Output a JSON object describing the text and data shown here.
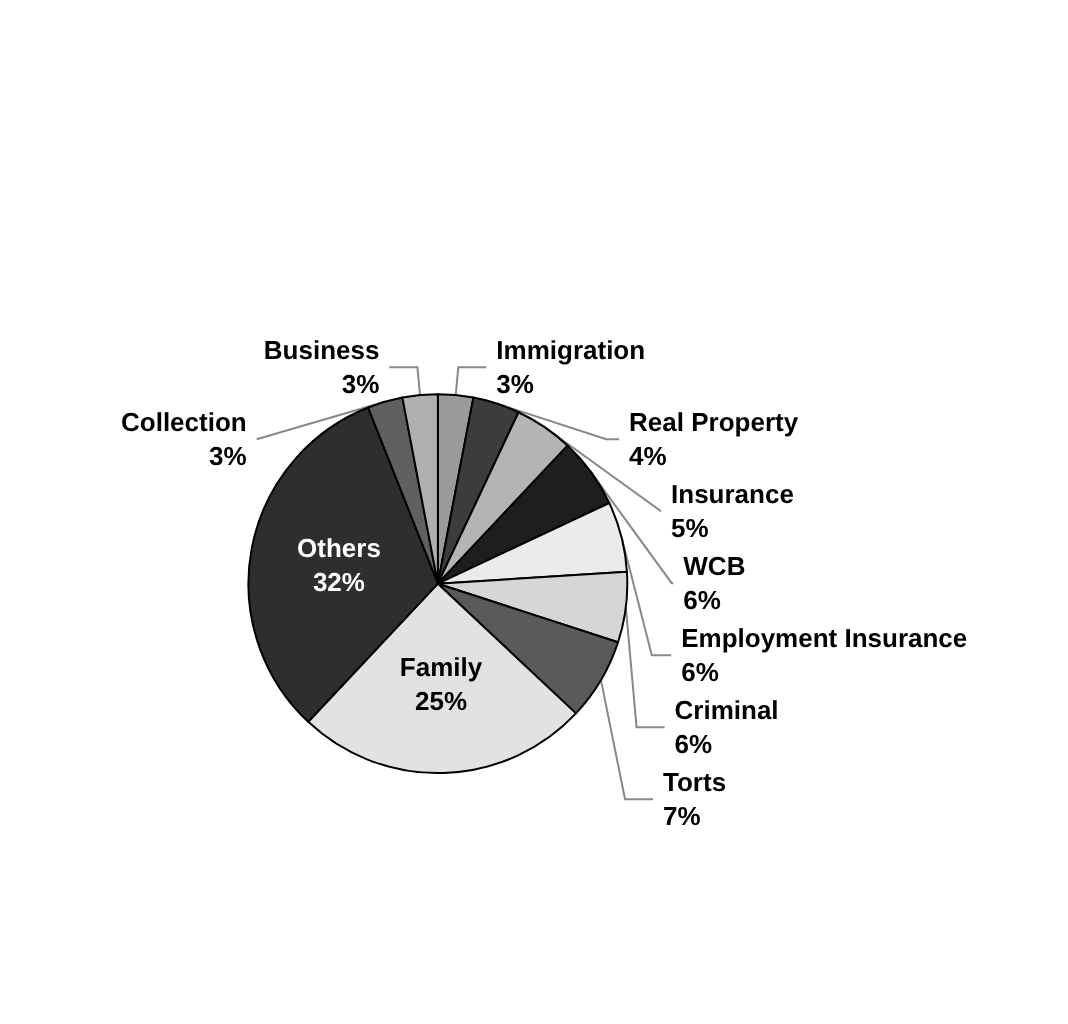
{
  "chart_data": {
    "type": "pie",
    "categories": [
      "Immigration",
      "Real Property",
      "Insurance",
      "WCB",
      "Employment Insurance",
      "Criminal",
      "Torts",
      "Family",
      "Others",
      "Collection",
      "Business"
    ],
    "values": [
      3,
      4,
      5,
      6,
      6,
      6,
      7,
      25,
      32,
      3,
      3
    ],
    "value_labels": [
      "3%",
      "4%",
      "5%",
      "6%",
      "6%",
      "6%",
      "7%",
      "25%",
      "32%",
      "3%",
      "3%"
    ],
    "colors": [
      "#9a9a9a",
      "#3c3c3c",
      "#b4b4b4",
      "#1e1e1e",
      "#ebebeb",
      "#d6d6d6",
      "#5a5a5a",
      "#e2e2e2",
      "#2e2e2e",
      "#606060",
      "#b0b0b0"
    ],
    "legend": false
  }
}
